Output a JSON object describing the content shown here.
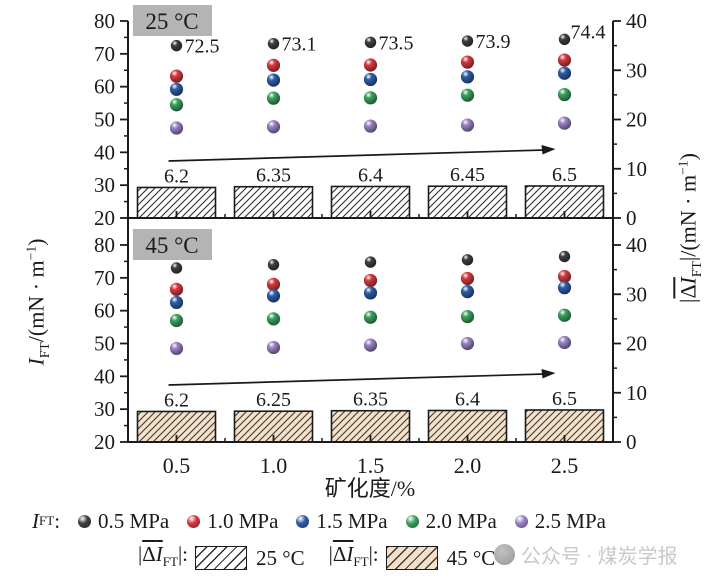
{
  "figure": {
    "panel_labels": [
      "25 °C",
      "45 °C"
    ],
    "temp_label_bg": "#b4b4b4",
    "ink_color": "#1a1a1a",
    "watermark": {
      "text": "公众号 · 煤炭学报",
      "color": "#c9c9c9"
    }
  },
  "axes": {
    "xlabel": "矿化度/%",
    "x_tick_labels": [
      "0.5",
      "1.0",
      "1.5",
      "2.0",
      "2.5"
    ],
    "x_tick_values": [
      0.5,
      1.0,
      1.5,
      2.0,
      2.5
    ],
    "xlim": [
      0.25,
      2.75
    ],
    "left_tick_labels": [
      "80",
      "70",
      "60",
      "50",
      "40",
      "30",
      "20"
    ],
    "left_tick_values": [
      80,
      70,
      60,
      50,
      40,
      30,
      20
    ],
    "ylim_left": [
      20,
      80
    ],
    "right_tick_labels": [
      "40",
      "30",
      "20",
      "10",
      "0"
    ],
    "right_tick_values": [
      40,
      30,
      20,
      10,
      0
    ],
    "ylim_right": [
      0,
      40
    ],
    "left_title": {
      "main": "I",
      "sub": "FT",
      "unit_pre": "/(mN · m",
      "sup": "−1",
      "unit_post": ")"
    },
    "right_title": {
      "p1": "|",
      "over_delta": "Δ",
      "over_i": "I",
      "sub": "FT",
      "p2": "|/(mN · m",
      "sup": "−1",
      "p3": ")"
    }
  },
  "legend": {
    "prefix_main": "I",
    "prefix_sub": "FT",
    "prefix_colon": ":",
    "items": [
      {
        "label": "0.5 MPa",
        "color": "#3f3f3f"
      },
      {
        "label": "1.0 MPa",
        "color": "#d63a41"
      },
      {
        "label": "1.5 MPa",
        "color": "#2e5ea8"
      },
      {
        "label": "2.0 MPa",
        "color": "#3ba35f"
      },
      {
        "label": "2.5 MPa",
        "color": "#9c83c5"
      }
    ],
    "bar_formula": {
      "p1": "|",
      "over_delta": "Δ",
      "over_i": "I",
      "sub": "FT",
      "p2": "|:"
    },
    "bar_items": [
      {
        "label": "25 °C",
        "fill": "#ffffff",
        "hatch": "#2e2e2e"
      },
      {
        "label": "45 °C",
        "fill": "#f6e0c8",
        "hatch": "#3a3a3a"
      }
    ]
  },
  "chart_data": [
    {
      "type": "scatter",
      "panel_label": "25 °C",
      "x": [
        0.5,
        1.0,
        1.5,
        2.0,
        2.5
      ],
      "series": [
        {
          "name": "0.5 MPa",
          "color": "#3f3f3f",
          "values": [
            72.5,
            73.1,
            73.5,
            73.9,
            74.4
          ],
          "point_labels": [
            "72.5",
            "73.1",
            "73.5",
            "73.9",
            "74.4"
          ]
        },
        {
          "name": "1.0 MPa",
          "color": "#d63a41",
          "values": [
            63.2,
            66.5,
            66.6,
            67.5,
            68.1
          ]
        },
        {
          "name": "1.5 MPa",
          "color": "#2e5ea8",
          "values": [
            59.2,
            62.0,
            62.2,
            63.0,
            64.1
          ]
        },
        {
          "name": "2.0 MPa",
          "color": "#3ba35f",
          "values": [
            54.5,
            56.5,
            56.6,
            57.4,
            57.6
          ]
        },
        {
          "name": "2.5 MPa",
          "color": "#9c83c5",
          "values": [
            47.4,
            47.8,
            48.0,
            48.3,
            48.9
          ]
        }
      ],
      "bars": {
        "name": "|ΔI_FT| 25 °C",
        "axis": "right",
        "values": [
          6.2,
          6.35,
          6.4,
          6.45,
          6.5
        ],
        "labels": [
          "6.2",
          "6.35",
          "6.4",
          "6.45",
          "6.5"
        ],
        "fill": "#ffffff",
        "hatch_color": "#2e2e2e"
      },
      "trend_arrow": true
    },
    {
      "type": "scatter",
      "panel_label": "45 °C",
      "x": [
        0.5,
        1.0,
        1.5,
        2.0,
        2.5
      ],
      "series": [
        {
          "name": "0.5 MPa",
          "color": "#3f3f3f",
          "values": [
            73.0,
            74.0,
            74.8,
            75.5,
            76.5
          ]
        },
        {
          "name": "1.0 MPa",
          "color": "#d63a41",
          "values": [
            66.5,
            68.0,
            69.2,
            69.8,
            70.4
          ]
        },
        {
          "name": "1.5 MPa",
          "color": "#2e5ea8",
          "values": [
            62.5,
            64.5,
            65.4,
            65.8,
            67.0
          ]
        },
        {
          "name": "2.0 MPa",
          "color": "#3ba35f",
          "values": [
            57.0,
            57.5,
            58.0,
            58.2,
            58.6
          ]
        },
        {
          "name": "2.5 MPa",
          "color": "#9c83c5",
          "values": [
            48.5,
            48.8,
            49.5,
            50.0,
            50.3
          ]
        }
      ],
      "bars": {
        "name": "|ΔI_FT| 45 °C",
        "axis": "right",
        "values": [
          6.2,
          6.25,
          6.35,
          6.4,
          6.5
        ],
        "labels": [
          "6.2",
          "6.25",
          "6.35",
          "6.4",
          "6.5"
        ],
        "fill": "#f6e0c8",
        "hatch_color": "#3a3a3a"
      },
      "trend_arrow": true
    }
  ]
}
